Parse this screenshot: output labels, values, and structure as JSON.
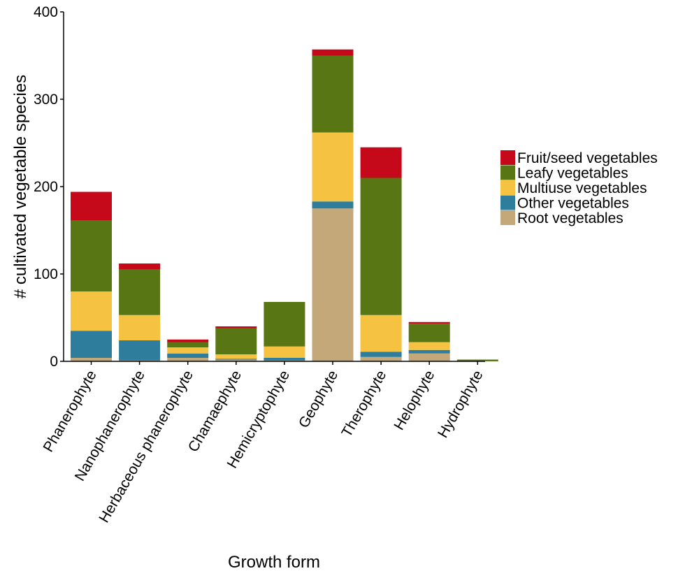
{
  "chart_data": {
    "type": "bar",
    "stacked": true,
    "xlabel": "Growth form",
    "ylabel": "# cultivated vegetable species",
    "ylim": [
      0,
      400
    ],
    "yticks": [
      0,
      100,
      200,
      300,
      400
    ],
    "grid": false,
    "legend_position": "right",
    "categories": [
      "Phanerophyte",
      "Nanophanerophyte",
      "Herbaceous phanerophyte",
      "Chamaephyte",
      "Hemicryptophyte",
      "Geophyte",
      "Therophyte",
      "Helophyte",
      "Hydrophyte"
    ],
    "series": [
      {
        "name": "Root vegetables",
        "color": "#c4a87a",
        "values": [
          4,
          1,
          4,
          2,
          1,
          175,
          5,
          9,
          0
        ]
      },
      {
        "name": "Other vegetables",
        "color": "#2f7d9c",
        "values": [
          31,
          23,
          5,
          1,
          3,
          8,
          6,
          4,
          0
        ]
      },
      {
        "name": "Multiuse vegetables",
        "color": "#f5c242",
        "values": [
          45,
          29,
          7,
          5,
          13,
          79,
          42,
          9,
          0
        ]
      },
      {
        "name": "Leafy vegetables",
        "color": "#587714",
        "values": [
          81,
          52,
          6,
          30,
          51,
          88,
          157,
          21,
          2
        ]
      },
      {
        "name": "Fruit/seed vegetables",
        "color": "#c6091a",
        "values": [
          33,
          7,
          3,
          2,
          0,
          7,
          35,
          2,
          0
        ]
      }
    ],
    "legend_order": [
      "Fruit/seed vegetables",
      "Leafy vegetables",
      "Multiuse vegetables",
      "Other vegetables",
      "Root vegetables"
    ]
  }
}
